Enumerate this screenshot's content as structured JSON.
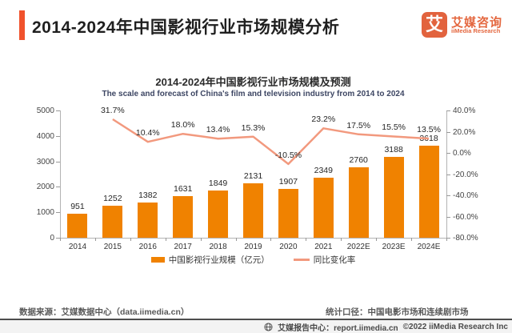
{
  "header": {
    "title": "2014-2024年中国影视行业市场规模分析",
    "logo": {
      "mark": "艾",
      "name_cn": "艾媒咨询",
      "name_en": "iiMedia Research"
    }
  },
  "chart_data": {
    "type": "bar",
    "title": "2014-2024年中国影视行业市场规模及预测",
    "subtitle": "The scale and forecast of China's film and television industry from 2014 to 2024",
    "categories": [
      "2014",
      "2015",
      "2016",
      "2017",
      "2018",
      "2019",
      "2020",
      "2021",
      "2022E",
      "2023E",
      "2024E"
    ],
    "series": [
      {
        "name": "中国影视行业规模（亿元）",
        "type": "bar",
        "color": "#F08200",
        "values": [
          951,
          1252,
          1382,
          1631,
          1849,
          2131,
          1907,
          2349,
          2760,
          3188,
          3618
        ],
        "labels": [
          "951",
          "1252",
          "1382",
          "1631",
          "1849",
          "2131",
          "1907",
          "2349",
          "2760",
          "3188",
          "3618"
        ]
      },
      {
        "name": "同比变化率",
        "type": "line",
        "color": "#F2997E",
        "values": [
          null,
          31.7,
          10.4,
          18.0,
          13.4,
          15.3,
          -10.5,
          23.2,
          17.5,
          15.5,
          13.5
        ],
        "labels": [
          "",
          "31.7%",
          "10.4%",
          "18.0%",
          "13.4%",
          "15.3%",
          "-10.5%",
          "23.2%",
          "17.5%",
          "15.5%",
          "13.5%"
        ]
      }
    ],
    "left_axis": {
      "min": 0,
      "max": 5000,
      "ticks": [
        "5000",
        "4000",
        "3000",
        "2000",
        "1000",
        "0"
      ]
    },
    "right_axis": {
      "min": -80,
      "max": 40,
      "ticks": [
        "40.0%",
        "20.0%",
        "0.0%",
        "-20.0%",
        "-40.0%",
        "-60.0%",
        "-80.0%"
      ]
    },
    "legend_position": "bottom",
    "grid": false
  },
  "footer": {
    "source": "数据来源：艾媒数据中心（data.iimedia.cn）",
    "scope": "统计口径：中国电影市场和连续剧市场",
    "report_center": "艾媒报告中心：report.iimedia.cn",
    "copyright": "©2022  iiMedia Research  Inc",
    "globe_icon": "globe"
  },
  "colors": {
    "accent": "#F0522C",
    "bar": "#F08200",
    "line": "#F2997E",
    "logo": "#E2633E"
  }
}
